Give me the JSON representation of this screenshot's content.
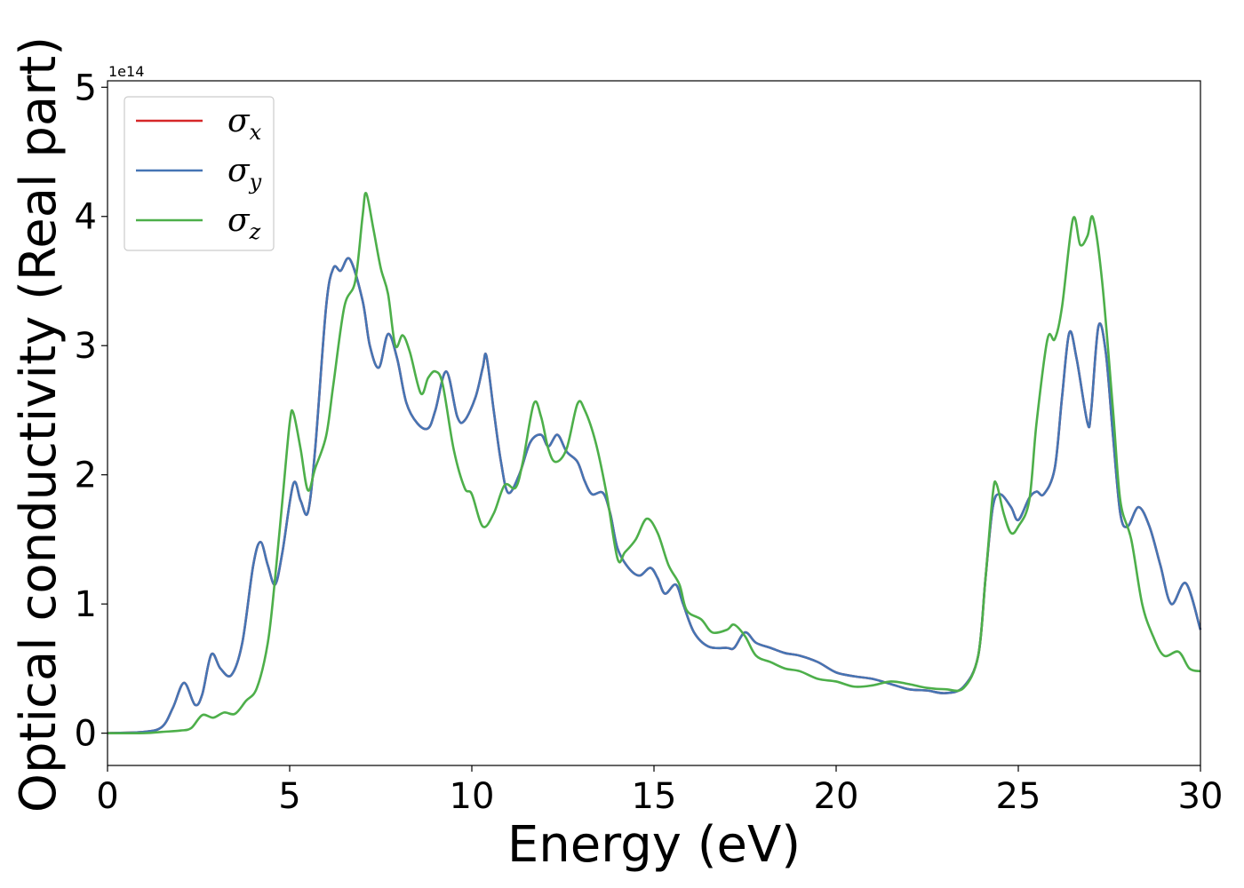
{
  "chart_data": {
    "type": "line",
    "xlabel": "Energy (eV)",
    "ylabel": "Optical conductivity (Real part)",
    "y_offset_label": "1e14",
    "xlim": [
      0,
      30
    ],
    "ylim": [
      -0.25,
      5.05
    ],
    "x_ticks": [
      "0",
      "5",
      "10",
      "15",
      "20",
      "25",
      "30"
    ],
    "y_ticks": [
      "0",
      "1",
      "2",
      "3",
      "4",
      "5"
    ],
    "grid": false,
    "legend_position": "top-left",
    "series": [
      {
        "name": "σx",
        "legend_symbol": "σ",
        "legend_subscript": "x",
        "color": "#d62728",
        "points": [
          [
            0,
            0
          ],
          [
            1,
            0.01
          ],
          [
            1.5,
            0.05
          ],
          [
            1.8,
            0.2
          ],
          [
            2.1,
            0.39
          ],
          [
            2.4,
            0.22
          ],
          [
            2.6,
            0.3
          ],
          [
            2.85,
            0.61
          ],
          [
            3.1,
            0.5
          ],
          [
            3.4,
            0.45
          ],
          [
            3.7,
            0.7
          ],
          [
            4.0,
            1.3
          ],
          [
            4.2,
            1.48
          ],
          [
            4.4,
            1.3
          ],
          [
            4.6,
            1.15
          ],
          [
            4.8,
            1.4
          ],
          [
            5.1,
            1.93
          ],
          [
            5.3,
            1.8
          ],
          [
            5.5,
            1.71
          ],
          [
            5.7,
            2.2
          ],
          [
            6.0,
            3.3
          ],
          [
            6.2,
            3.6
          ],
          [
            6.4,
            3.58
          ],
          [
            6.65,
            3.67
          ],
          [
            7.0,
            3.35
          ],
          [
            7.2,
            3.0
          ],
          [
            7.45,
            2.83
          ],
          [
            7.7,
            3.09
          ],
          [
            7.95,
            2.9
          ],
          [
            8.2,
            2.56
          ],
          [
            8.5,
            2.4
          ],
          [
            8.8,
            2.36
          ],
          [
            9.0,
            2.5
          ],
          [
            9.3,
            2.8
          ],
          [
            9.6,
            2.45
          ],
          [
            9.8,
            2.42
          ],
          [
            10.1,
            2.6
          ],
          [
            10.3,
            2.83
          ],
          [
            10.4,
            2.92
          ],
          [
            10.6,
            2.5
          ],
          [
            10.8,
            2.1
          ],
          [
            11.0,
            1.86
          ],
          [
            11.3,
            2.0
          ],
          [
            11.6,
            2.25
          ],
          [
            11.9,
            2.31
          ],
          [
            12.1,
            2.22
          ],
          [
            12.35,
            2.31
          ],
          [
            12.6,
            2.18
          ],
          [
            12.9,
            2.1
          ],
          [
            13.1,
            1.95
          ],
          [
            13.3,
            1.85
          ],
          [
            13.6,
            1.86
          ],
          [
            13.8,
            1.7
          ],
          [
            14.0,
            1.43
          ],
          [
            14.3,
            1.28
          ],
          [
            14.6,
            1.22
          ],
          [
            14.9,
            1.28
          ],
          [
            15.1,
            1.2
          ],
          [
            15.3,
            1.08
          ],
          [
            15.6,
            1.15
          ],
          [
            15.8,
            1.0
          ],
          [
            16.1,
            0.78
          ],
          [
            16.5,
            0.67
          ],
          [
            17.0,
            0.66
          ],
          [
            17.2,
            0.66
          ],
          [
            17.5,
            0.78
          ],
          [
            17.8,
            0.7
          ],
          [
            18.2,
            0.66
          ],
          [
            18.6,
            0.62
          ],
          [
            19.0,
            0.6
          ],
          [
            19.5,
            0.55
          ],
          [
            20.0,
            0.47
          ],
          [
            20.5,
            0.44
          ],
          [
            21.0,
            0.42
          ],
          [
            21.5,
            0.38
          ],
          [
            22.0,
            0.34
          ],
          [
            22.5,
            0.33
          ],
          [
            23.0,
            0.31
          ],
          [
            23.5,
            0.36
          ],
          [
            23.9,
            0.6
          ],
          [
            24.1,
            1.2
          ],
          [
            24.3,
            1.75
          ],
          [
            24.5,
            1.85
          ],
          [
            24.8,
            1.75
          ],
          [
            25.0,
            1.65
          ],
          [
            25.3,
            1.82
          ],
          [
            25.5,
            1.87
          ],
          [
            25.7,
            1.85
          ],
          [
            26.0,
            2.05
          ],
          [
            26.2,
            2.6
          ],
          [
            26.4,
            3.1
          ],
          [
            26.6,
            2.9
          ],
          [
            26.9,
            2.4
          ],
          [
            27.0,
            2.5
          ],
          [
            27.2,
            3.15
          ],
          [
            27.4,
            2.95
          ],
          [
            27.6,
            2.3
          ],
          [
            27.8,
            1.7
          ],
          [
            28.0,
            1.6
          ],
          [
            28.3,
            1.75
          ],
          [
            28.6,
            1.6
          ],
          [
            28.9,
            1.3
          ],
          [
            29.2,
            1.0
          ],
          [
            29.6,
            1.16
          ],
          [
            30.0,
            0.8
          ]
        ]
      },
      {
        "name": "σy",
        "legend_symbol": "σ",
        "legend_subscript": "y",
        "color": "#4575b4",
        "points": [
          [
            0,
            0
          ],
          [
            1,
            0.01
          ],
          [
            1.5,
            0.05
          ],
          [
            1.8,
            0.2
          ],
          [
            2.1,
            0.39
          ],
          [
            2.4,
            0.22
          ],
          [
            2.6,
            0.3
          ],
          [
            2.85,
            0.61
          ],
          [
            3.1,
            0.5
          ],
          [
            3.4,
            0.45
          ],
          [
            3.7,
            0.7
          ],
          [
            4.0,
            1.3
          ],
          [
            4.2,
            1.48
          ],
          [
            4.4,
            1.3
          ],
          [
            4.6,
            1.15
          ],
          [
            4.8,
            1.4
          ],
          [
            5.1,
            1.93
          ],
          [
            5.3,
            1.8
          ],
          [
            5.5,
            1.71
          ],
          [
            5.7,
            2.2
          ],
          [
            6.0,
            3.3
          ],
          [
            6.2,
            3.6
          ],
          [
            6.4,
            3.58
          ],
          [
            6.65,
            3.67
          ],
          [
            7.0,
            3.35
          ],
          [
            7.2,
            3.0
          ],
          [
            7.45,
            2.83
          ],
          [
            7.7,
            3.09
          ],
          [
            7.95,
            2.9
          ],
          [
            8.2,
            2.56
          ],
          [
            8.5,
            2.4
          ],
          [
            8.8,
            2.36
          ],
          [
            9.0,
            2.5
          ],
          [
            9.3,
            2.8
          ],
          [
            9.6,
            2.45
          ],
          [
            9.8,
            2.42
          ],
          [
            10.1,
            2.6
          ],
          [
            10.3,
            2.83
          ],
          [
            10.4,
            2.92
          ],
          [
            10.6,
            2.5
          ],
          [
            10.8,
            2.1
          ],
          [
            11.0,
            1.86
          ],
          [
            11.3,
            2.0
          ],
          [
            11.6,
            2.25
          ],
          [
            11.9,
            2.31
          ],
          [
            12.1,
            2.22
          ],
          [
            12.35,
            2.31
          ],
          [
            12.6,
            2.18
          ],
          [
            12.9,
            2.1
          ],
          [
            13.1,
            1.95
          ],
          [
            13.3,
            1.85
          ],
          [
            13.6,
            1.86
          ],
          [
            13.8,
            1.7
          ],
          [
            14.0,
            1.43
          ],
          [
            14.3,
            1.28
          ],
          [
            14.6,
            1.22
          ],
          [
            14.9,
            1.28
          ],
          [
            15.1,
            1.2
          ],
          [
            15.3,
            1.08
          ],
          [
            15.6,
            1.15
          ],
          [
            15.8,
            1.0
          ],
          [
            16.1,
            0.78
          ],
          [
            16.5,
            0.67
          ],
          [
            17.0,
            0.66
          ],
          [
            17.2,
            0.66
          ],
          [
            17.5,
            0.78
          ],
          [
            17.8,
            0.7
          ],
          [
            18.2,
            0.66
          ],
          [
            18.6,
            0.62
          ],
          [
            19.0,
            0.6
          ],
          [
            19.5,
            0.55
          ],
          [
            20.0,
            0.47
          ],
          [
            20.5,
            0.44
          ],
          [
            21.0,
            0.42
          ],
          [
            21.5,
            0.38
          ],
          [
            22.0,
            0.34
          ],
          [
            22.5,
            0.33
          ],
          [
            23.0,
            0.31
          ],
          [
            23.5,
            0.36
          ],
          [
            23.9,
            0.6
          ],
          [
            24.1,
            1.2
          ],
          [
            24.3,
            1.75
          ],
          [
            24.5,
            1.85
          ],
          [
            24.8,
            1.75
          ],
          [
            25.0,
            1.65
          ],
          [
            25.3,
            1.82
          ],
          [
            25.5,
            1.87
          ],
          [
            25.7,
            1.85
          ],
          [
            26.0,
            2.05
          ],
          [
            26.2,
            2.6
          ],
          [
            26.4,
            3.1
          ],
          [
            26.6,
            2.9
          ],
          [
            26.9,
            2.4
          ],
          [
            27.0,
            2.5
          ],
          [
            27.2,
            3.15
          ],
          [
            27.4,
            2.95
          ],
          [
            27.6,
            2.3
          ],
          [
            27.8,
            1.7
          ],
          [
            28.0,
            1.6
          ],
          [
            28.3,
            1.75
          ],
          [
            28.6,
            1.6
          ],
          [
            28.9,
            1.3
          ],
          [
            29.2,
            1.0
          ],
          [
            29.6,
            1.16
          ],
          [
            30.0,
            0.8
          ]
        ]
      },
      {
        "name": "σz",
        "legend_symbol": "σ",
        "legend_subscript": "z",
        "color": "#4daf4a",
        "points": [
          [
            0,
            0
          ],
          [
            1,
            0.0
          ],
          [
            1.5,
            0.01
          ],
          [
            2.0,
            0.02
          ],
          [
            2.3,
            0.04
          ],
          [
            2.6,
            0.14
          ],
          [
            2.9,
            0.12
          ],
          [
            3.2,
            0.16
          ],
          [
            3.5,
            0.15
          ],
          [
            3.8,
            0.25
          ],
          [
            4.1,
            0.35
          ],
          [
            4.4,
            0.7
          ],
          [
            4.6,
            1.2
          ],
          [
            4.8,
            1.8
          ],
          [
            5.0,
            2.4
          ],
          [
            5.1,
            2.48
          ],
          [
            5.3,
            2.2
          ],
          [
            5.5,
            1.88
          ],
          [
            5.7,
            2.05
          ],
          [
            6.0,
            2.3
          ],
          [
            6.2,
            2.7
          ],
          [
            6.5,
            3.3
          ],
          [
            6.8,
            3.5
          ],
          [
            7.0,
            4.0
          ],
          [
            7.1,
            4.18
          ],
          [
            7.3,
            3.9
          ],
          [
            7.5,
            3.6
          ],
          [
            7.7,
            3.4
          ],
          [
            7.9,
            3.0
          ],
          [
            8.1,
            3.08
          ],
          [
            8.3,
            2.95
          ],
          [
            8.6,
            2.63
          ],
          [
            8.8,
            2.75
          ],
          [
            9.0,
            2.8
          ],
          [
            9.2,
            2.7
          ],
          [
            9.5,
            2.2
          ],
          [
            9.8,
            1.9
          ],
          [
            10.0,
            1.85
          ],
          [
            10.3,
            1.6
          ],
          [
            10.6,
            1.7
          ],
          [
            10.9,
            1.92
          ],
          [
            11.2,
            1.9
          ],
          [
            11.4,
            2.1
          ],
          [
            11.7,
            2.55
          ],
          [
            11.9,
            2.45
          ],
          [
            12.1,
            2.2
          ],
          [
            12.3,
            2.1
          ],
          [
            12.6,
            2.2
          ],
          [
            12.9,
            2.55
          ],
          [
            13.1,
            2.5
          ],
          [
            13.4,
            2.25
          ],
          [
            13.7,
            1.85
          ],
          [
            14.0,
            1.35
          ],
          [
            14.2,
            1.4
          ],
          [
            14.5,
            1.5
          ],
          [
            14.8,
            1.66
          ],
          [
            15.1,
            1.55
          ],
          [
            15.4,
            1.3
          ],
          [
            15.7,
            1.15
          ],
          [
            15.9,
            0.95
          ],
          [
            16.3,
            0.88
          ],
          [
            16.6,
            0.78
          ],
          [
            17.0,
            0.8
          ],
          [
            17.2,
            0.84
          ],
          [
            17.5,
            0.75
          ],
          [
            17.8,
            0.6
          ],
          [
            18.2,
            0.55
          ],
          [
            18.6,
            0.5
          ],
          [
            19.0,
            0.48
          ],
          [
            19.5,
            0.42
          ],
          [
            20.0,
            0.4
          ],
          [
            20.5,
            0.36
          ],
          [
            21.0,
            0.37
          ],
          [
            21.5,
            0.4
          ],
          [
            22.0,
            0.38
          ],
          [
            22.5,
            0.35
          ],
          [
            23.0,
            0.34
          ],
          [
            23.5,
            0.35
          ],
          [
            23.9,
            0.6
          ],
          [
            24.1,
            1.2
          ],
          [
            24.3,
            1.85
          ],
          [
            24.4,
            1.93
          ],
          [
            24.6,
            1.7
          ],
          [
            24.8,
            1.55
          ],
          [
            25.0,
            1.6
          ],
          [
            25.3,
            1.8
          ],
          [
            25.5,
            2.4
          ],
          [
            25.8,
            3.05
          ],
          [
            26.0,
            3.05
          ],
          [
            26.2,
            3.3
          ],
          [
            26.5,
            3.98
          ],
          [
            26.7,
            3.78
          ],
          [
            26.9,
            3.85
          ],
          [
            27.05,
            3.99
          ],
          [
            27.3,
            3.5
          ],
          [
            27.6,
            2.5
          ],
          [
            27.8,
            1.8
          ],
          [
            28.1,
            1.5
          ],
          [
            28.4,
            1.0
          ],
          [
            28.7,
            0.75
          ],
          [
            29.0,
            0.6
          ],
          [
            29.4,
            0.63
          ],
          [
            29.7,
            0.5
          ],
          [
            30.0,
            0.48
          ]
        ]
      }
    ]
  }
}
